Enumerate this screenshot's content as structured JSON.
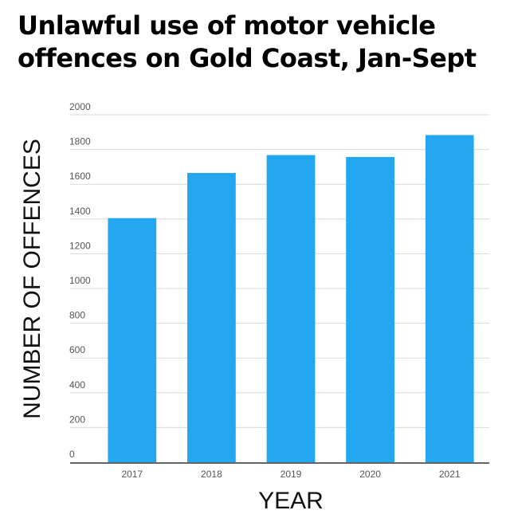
{
  "title_lines": [
    "Unlawful use of motor vehicle",
    "offences on Gold Coast, Jan-Sept"
  ],
  "chart_data": {
    "type": "bar",
    "title": "Unlawful use of motor vehicle offences on Gold Coast, Jan-Sept",
    "xlabel": "YEAR",
    "ylabel": "NUMBER OF OFFENCES",
    "categories": [
      "2017",
      "2018",
      "2019",
      "2020",
      "2021"
    ],
    "values": [
      1405,
      1665,
      1768,
      1757,
      1883
    ],
    "ylim": [
      0,
      2000
    ],
    "yticks": [
      0,
      200,
      400,
      600,
      800,
      1000,
      1200,
      1400,
      1600,
      1800,
      2000
    ],
    "grid": true,
    "bar_color": "#22A7F0"
  }
}
